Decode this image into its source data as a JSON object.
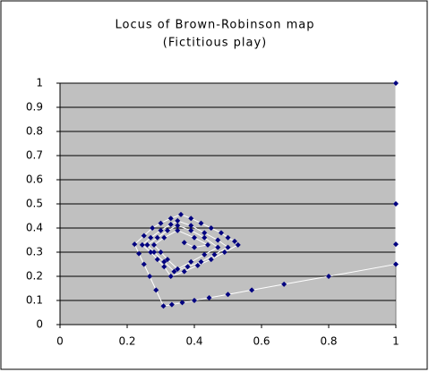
{
  "chart_data": {
    "type": "scatter",
    "title": "Locus of Brown-Robinson map",
    "subtitle": "(Fictitious play)",
    "color": "#000080",
    "line_color": "#ffffff",
    "plot_background": "#c0c0c0",
    "grid": true,
    "xlim": [
      0,
      1
    ],
    "xticks": [
      0,
      0.2,
      0.4,
      0.6,
      0.8,
      1
    ],
    "ylim": [
      0,
      1
    ],
    "yticks": [
      0,
      0.1,
      0.2,
      0.3,
      0.4,
      0.5,
      0.6,
      0.7,
      0.8,
      0.9,
      1
    ],
    "x": [
      1,
      1,
      1,
      1,
      0.8,
      0.667,
      0.571,
      0.5,
      0.444,
      0.4,
      0.364,
      0.333,
      0.308,
      0.286,
      0.267,
      0.25,
      0.235,
      0.222,
      0.25,
      0.275,
      0.3,
      0.33,
      0.36,
      0.39,
      0.42,
      0.45,
      0.48,
      0.5,
      0.52,
      0.53,
      0.49,
      0.45,
      0.41,
      0.37,
      0.33,
      0.31,
      0.29,
      0.27,
      0.245,
      0.27,
      0.3,
      0.33,
      0.35,
      0.39,
      0.43,
      0.47,
      0.5,
      0.46,
      0.42,
      0.38,
      0.34,
      0.31,
      0.28,
      0.26,
      0.29,
      0.32,
      0.35,
      0.39,
      0.43,
      0.47,
      0.43,
      0.39,
      0.35,
      0.32,
      0.3,
      0.28,
      0.31,
      0.35,
      0.4,
      0.44,
      0.4,
      0.37
    ],
    "values": [
      1,
      0.5,
      0.333,
      0.25,
      0.2,
      0.167,
      0.143,
      0.125,
      0.111,
      0.1,
      0.091,
      0.083,
      0.077,
      0.143,
      0.2,
      0.25,
      0.294,
      0.333,
      0.368,
      0.4,
      0.42,
      0.44,
      0.456,
      0.44,
      0.42,
      0.4,
      0.38,
      0.36,
      0.345,
      0.33,
      0.3,
      0.27,
      0.245,
      0.22,
      0.2,
      0.24,
      0.27,
      0.3,
      0.33,
      0.36,
      0.39,
      0.415,
      0.43,
      0.41,
      0.38,
      0.35,
      0.32,
      0.29,
      0.26,
      0.24,
      0.22,
      0.26,
      0.3,
      0.33,
      0.36,
      0.39,
      0.41,
      0.39,
      0.36,
      0.32,
      0.29,
      0.26,
      0.23,
      0.27,
      0.3,
      0.33,
      0.36,
      0.39,
      0.36,
      0.33,
      0.32,
      0.34
    ]
  }
}
